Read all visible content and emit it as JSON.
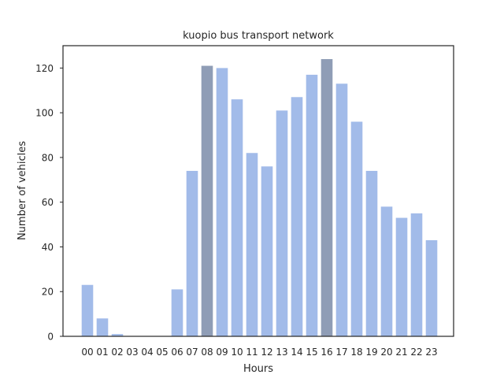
{
  "chart_data": {
    "type": "bar",
    "title": "kuopio bus transport network",
    "xlabel": "Hours",
    "ylabel": "Number of vehicles",
    "categories": [
      "00",
      "01",
      "02",
      "03",
      "04",
      "05",
      "06",
      "07",
      "08",
      "09",
      "10",
      "11",
      "12",
      "13",
      "14",
      "15",
      "16",
      "17",
      "18",
      "19",
      "20",
      "21",
      "22",
      "23"
    ],
    "values": [
      23,
      8,
      1,
      0,
      0,
      0,
      21,
      74,
      121,
      120,
      106,
      82,
      76,
      101,
      107,
      117,
      124,
      113,
      96,
      74,
      58,
      53,
      55,
      43
    ],
    "highlighted_categories": [
      "08",
      "16"
    ],
    "ylim": [
      0,
      130
    ],
    "yticks": [
      0,
      20,
      40,
      60,
      80,
      100,
      120
    ],
    "grid": false,
    "colors": {
      "bar": "#a2bbe9",
      "highlight": "#8f9db6",
      "axes": "#262626"
    }
  }
}
